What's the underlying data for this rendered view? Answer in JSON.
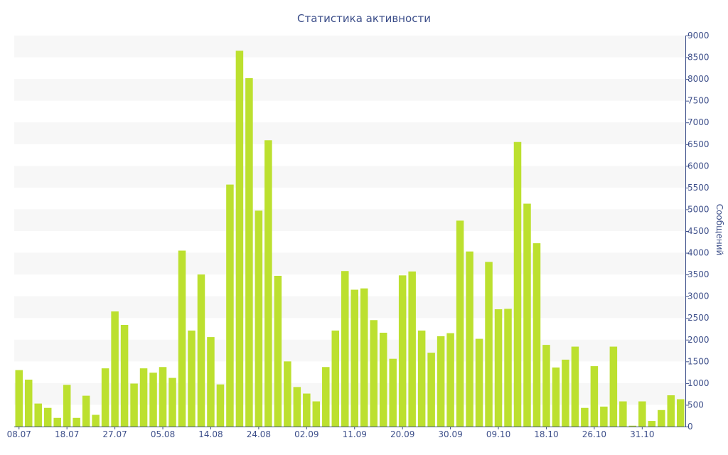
{
  "chart_data": {
    "type": "bar",
    "title": "Статистика активности",
    "xlabel": "",
    "ylabel": "Сообщений",
    "ylim": [
      0,
      9000
    ],
    "yticks": [
      0,
      500,
      1000,
      1500,
      2000,
      2500,
      3000,
      3500,
      4000,
      4500,
      5000,
      5500,
      6000,
      6500,
      7000,
      7500,
      8000,
      8500,
      9000
    ],
    "y_axis_side": "right",
    "grid": "alternating horizontal bands",
    "bar_color": "#bce02f",
    "band_color": "#f7f7f7",
    "text_color": "#3d4f8a",
    "x_tick_labels": [
      {
        "label": "08.07",
        "index": 0
      },
      {
        "label": "18.07",
        "index": 5
      },
      {
        "label": "27.07",
        "index": 10
      },
      {
        "label": "05.08",
        "index": 15
      },
      {
        "label": "14.08",
        "index": 20
      },
      {
        "label": "24.08",
        "index": 25
      },
      {
        "label": "02.09",
        "index": 30
      },
      {
        "label": "11.09",
        "index": 35
      },
      {
        "label": "20.09",
        "index": 40
      },
      {
        "label": "30.09",
        "index": 45
      },
      {
        "label": "09.10",
        "index": 50
      },
      {
        "label": "18.10",
        "index": 55
      },
      {
        "label": "26.10",
        "index": 60
      },
      {
        "label": "31.10",
        "index": 65
      }
    ],
    "values": [
      1300,
      1080,
      530,
      430,
      200,
      960,
      200,
      710,
      270,
      1340,
      2650,
      2340,
      990,
      1340,
      1240,
      1370,
      1120,
      4050,
      2210,
      3500,
      2060,
      970,
      5570,
      8650,
      8020,
      4970,
      6590,
      3470,
      1500,
      910,
      760,
      580,
      1370,
      2210,
      3580,
      3150,
      3180,
      2450,
      2160,
      1560,
      3480,
      3570,
      2210,
      1700,
      2080,
      2150,
      4740,
      4030,
      2020,
      3790,
      2700,
      2710,
      6550,
      5130,
      4220,
      1880,
      1360,
      1540,
      1840,
      430,
      1390,
      460,
      1840,
      580,
      20,
      580,
      130,
      380,
      720,
      630
    ]
  }
}
